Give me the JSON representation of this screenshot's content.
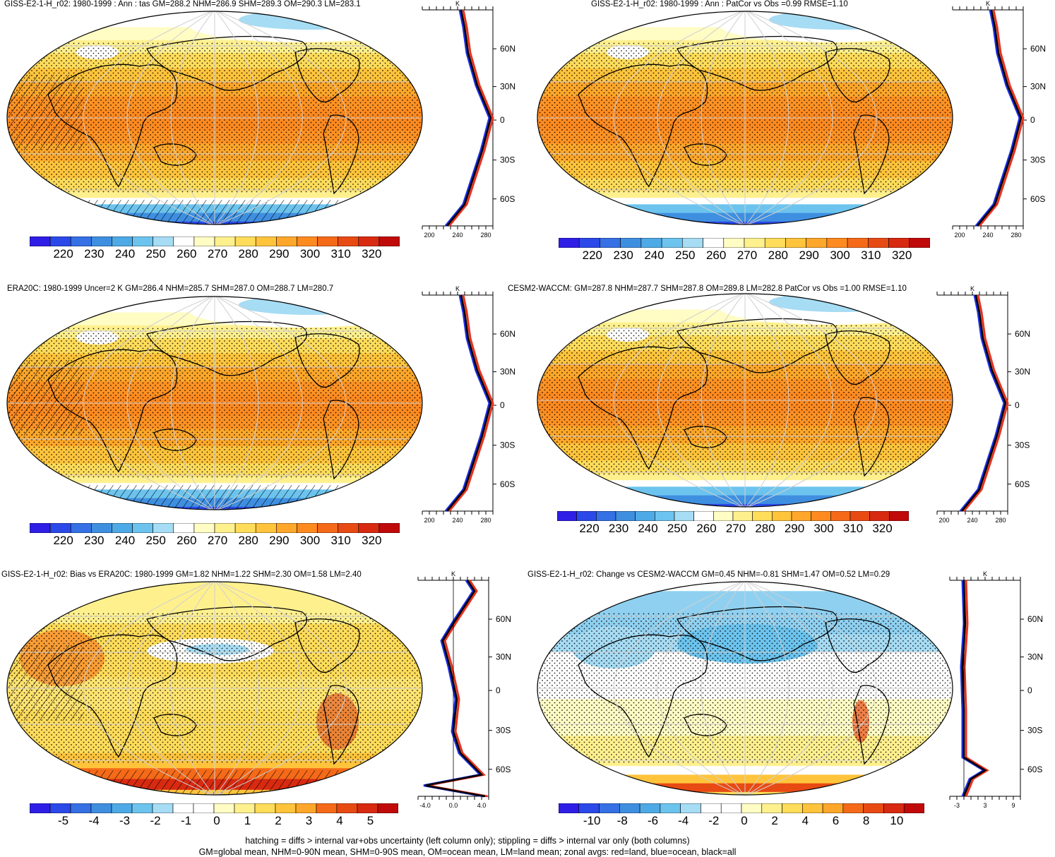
{
  "panels": [
    {
      "id": "p1",
      "title": "GISS-E2-1-H_r02: 1980-1999 : Ann : tas GM=288.2 NHM=286.9 SHM=289.3 OM=290.3 LM=283.1",
      "type": "abs",
      "hatching": true,
      "zonal_unit": "K",
      "zonal_ticks": [
        "60N",
        "30N",
        "0",
        "30S",
        "60S"
      ],
      "zonal_xticks": [
        "200",
        "240",
        "280"
      ],
      "colorbar_labels": [
        "220",
        "230",
        "240",
        "250",
        "260",
        "270",
        "280",
        "290",
        "300",
        "310",
        "320"
      ]
    },
    {
      "id": "p2",
      "title": "GISS-E2-1-H_r02: 1980-1999 : Ann : PatCor vs Obs =0.99 RMSE=1.10",
      "type": "abs",
      "hatching": false,
      "zonal_unit": "K",
      "zonal_ticks": [
        "60N",
        "30N",
        "0",
        "30S",
        "60S"
      ],
      "zonal_xticks": [
        "200",
        "240",
        "280"
      ],
      "colorbar_labels": [
        "220",
        "230",
        "240",
        "250",
        "260",
        "270",
        "280",
        "290",
        "300",
        "310",
        "320"
      ]
    },
    {
      "id": "p3",
      "title": "ERA20C: 1980-1999 Uncer=2 K GM=286.4 NHM=285.7 SHM=287.0 OM=288.7 LM=280.7",
      "type": "abs",
      "hatching": true,
      "zonal_unit": "K",
      "zonal_ticks": [
        "60N",
        "30N",
        "0",
        "30S",
        "60S"
      ],
      "zonal_xticks": [
        "200",
        "240",
        "280"
      ],
      "colorbar_labels": [
        "220",
        "230",
        "240",
        "250",
        "260",
        "270",
        "280",
        "290",
        "300",
        "310",
        "320"
      ]
    },
    {
      "id": "p4",
      "title": "CESM2-WACCM: GM=287.8 NHM=287.7 SHM=287.8 OM=289.8 LM=282.8 PatCor vs Obs =1.00 RMSE=1.10",
      "type": "abs",
      "hatching": false,
      "zonal_unit": "K",
      "zonal_ticks": [
        "60N",
        "30N",
        "0",
        "30S",
        "60S"
      ],
      "zonal_xticks": [
        "200",
        "240",
        "280"
      ],
      "colorbar_labels": [
        "220",
        "230",
        "240",
        "250",
        "260",
        "270",
        "280",
        "290",
        "300",
        "310",
        "320"
      ]
    },
    {
      "id": "p5",
      "title": "GISS-E2-1-H_r02: Bias vs ERA20C: 1980-1999 GM=1.82 NHM=1.22 SHM=2.30 OM=1.58 LM=2.40",
      "type": "bias",
      "hatching": true,
      "zonal_unit": "K",
      "zonal_ticks": [
        "60N",
        "30N",
        "0",
        "30S",
        "60S"
      ],
      "zonal_xticks": [
        "-4.0",
        "0.0",
        "4.0"
      ],
      "colorbar_labels": [
        "-5",
        "-4",
        "-3",
        "-2",
        "-1",
        "0",
        "1",
        "2",
        "3",
        "4",
        "5"
      ]
    },
    {
      "id": "p6",
      "title": "GISS-E2-1-H_r02: Change vs CESM2-WACCM GM=0.45 NHM=-0.81 SHM=1.47 OM=0.52 LM=0.29",
      "type": "change",
      "hatching": false,
      "zonal_unit": "K",
      "zonal_ticks": [
        "60N",
        "30N",
        "0",
        "30S",
        "60S"
      ],
      "zonal_xticks": [
        "-3",
        "3",
        "9"
      ],
      "colorbar_labels": [
        "-10",
        "-8",
        "-6",
        "-4",
        "-2",
        "0",
        "2",
        "4",
        "6",
        "8",
        "10"
      ]
    }
  ],
  "colors": {
    "abs_scale": [
      "#2f1ee6",
      "#2b49e8",
      "#3570e4",
      "#3f8fe0",
      "#4eaae6",
      "#6cc4ee",
      "#a6dcf4",
      "#ffffff",
      "#fffcc4",
      "#fff08e",
      "#ffdc5a",
      "#ffc43c",
      "#ffa72a",
      "#ff8a20",
      "#f56a18",
      "#e84a14",
      "#d82a10",
      "#c00a0a"
    ],
    "land_line": "#e8311f",
    "ocean_line": "#1c2fe0",
    "all_line": "#000000"
  },
  "footer": {
    "line1": "hatching = diffs > internal var+obs uncertainty (left column only); stippling = diffs > internal var only (both columns)",
    "line2": "GM=global mean, NHM=0-90N mean, SHM=0-90S mean, OM=ocean mean, LM=land mean; zonal avgs: red=land, blue=ocean, black=all"
  }
}
